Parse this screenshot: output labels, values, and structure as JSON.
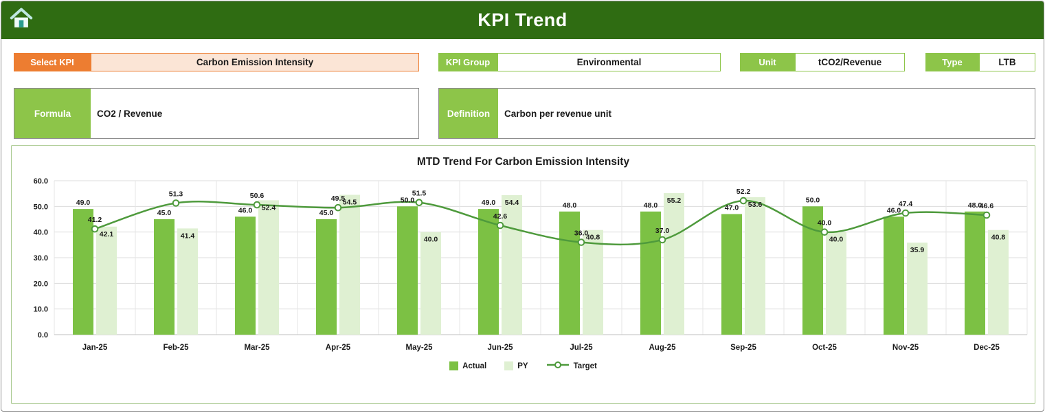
{
  "header": {
    "title": "KPI Trend"
  },
  "filters": {
    "select_kpi": {
      "label": "Select KPI",
      "value": "Carbon Emission Intensity"
    },
    "kpi_group": {
      "label": "KPI Group",
      "value": "Environmental"
    },
    "unit": {
      "label": "Unit",
      "value": "tCO2/Revenue"
    },
    "type": {
      "label": "Type",
      "value": "LTB"
    }
  },
  "details": {
    "formula": {
      "label": "Formula",
      "value": "CO2 / Revenue"
    },
    "definition": {
      "label": "Definition",
      "value": "Carbon per revenue unit"
    }
  },
  "chart_data": {
    "type": "bar",
    "subtype": "grouped-bars-with-line",
    "title": "MTD Trend For Carbon Emission Intensity",
    "categories": [
      "Jan-25",
      "Feb-25",
      "Mar-25",
      "Apr-25",
      "May-25",
      "Jun-25",
      "Jul-25",
      "Aug-25",
      "Sep-25",
      "Oct-25",
      "Nov-25",
      "Dec-25"
    ],
    "series": [
      {
        "name": "Actual",
        "chart_type": "column",
        "color": "#7cc144",
        "values": [
          49.0,
          45.0,
          46.0,
          45.0,
          50.0,
          49.0,
          48.0,
          48.0,
          47.0,
          50.0,
          46.0,
          48.0
        ]
      },
      {
        "name": "PY",
        "chart_type": "column",
        "color": "#dff0d2",
        "values": [
          42.1,
          41.4,
          52.4,
          54.5,
          40.0,
          54.4,
          40.8,
          55.2,
          53.6,
          40.0,
          35.9,
          40.8
        ]
      },
      {
        "name": "Target",
        "chart_type": "line",
        "color": "#4e9a3c",
        "values": [
          41.2,
          51.3,
          50.6,
          49.5,
          51.5,
          42.6,
          36.0,
          37.0,
          52.2,
          40.0,
          47.4,
          46.6
        ]
      }
    ],
    "xlabel": "",
    "ylabel": "",
    "ylim": [
      0,
      60
    ],
    "ytick_step": 10,
    "grid": true,
    "legend_position": "bottom"
  },
  "colors": {
    "header_bg": "#2f6c12",
    "accent_green": "#8dc549",
    "accent_orange": "#ed7d31",
    "orange_fill": "#fbe5d6",
    "actual_bar": "#7cc144",
    "py_bar": "#dff0d2",
    "target_line": "#4e9a3c"
  }
}
